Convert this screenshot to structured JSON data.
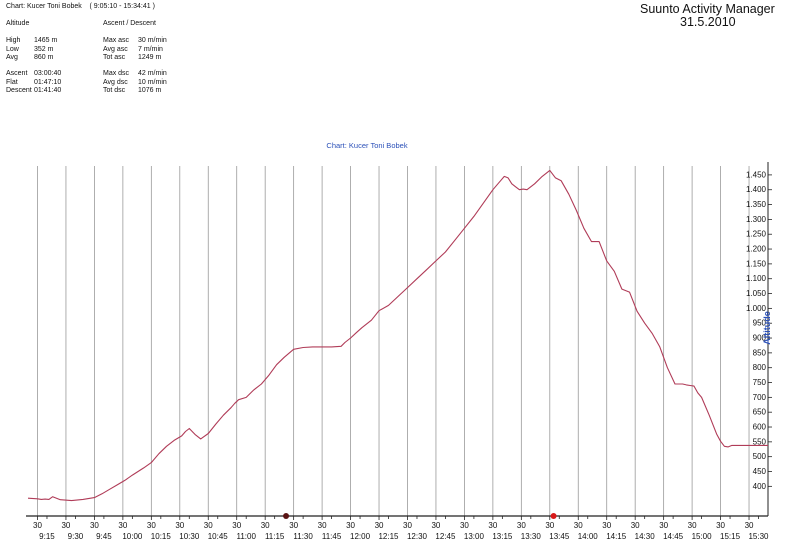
{
  "header": {
    "chart_line": "Chart: Kucer Toni Bobek",
    "time_range": "( 9:05:10 - 15:34:41 )",
    "app_title": "Suunto Activity Manager",
    "date": "31.5.2010",
    "altitude_section": {
      "title": "Altitude",
      "rows": [
        {
          "label": "High",
          "value": "1465 m"
        },
        {
          "label": "Low",
          "value": "352 m"
        },
        {
          "label": "Avg",
          "value": "860 m"
        }
      ]
    },
    "ascent_section": {
      "title": "Ascent / Descent",
      "rows": [
        {
          "label": "Max asc",
          "value": "30 m/min"
        },
        {
          "label": "Avg asc",
          "value": "7 m/min"
        },
        {
          "label": "Tot asc",
          "value": "1249 m"
        }
      ]
    },
    "time_rows": [
      {
        "label": "Ascent",
        "value": "03:00:40"
      },
      {
        "label": "Flat",
        "value": "01:47:10"
      },
      {
        "label": "Descent",
        "value": "01:41:40"
      }
    ],
    "descent_rows": [
      {
        "label": "Max dsc",
        "value": "42 m/min"
      },
      {
        "label": "Avg dsc",
        "value": "10 m/min"
      },
      {
        "label": "Tot dsc",
        "value": "1076 m"
      }
    ]
  },
  "chart_data": {
    "type": "line",
    "title": "Chart: Kucer Toni Bobek",
    "ylabel": "Altitude",
    "xlabel": "",
    "x_unit": "minutes after 9:00",
    "xlim": [
      5,
      395
    ],
    "ylim": [
      300,
      1480
    ],
    "grid": true,
    "y_ticks": [
      400,
      450,
      500,
      550,
      600,
      650,
      700,
      750,
      800,
      850,
      900,
      950,
      1000,
      1050,
      1100,
      1150,
      1200,
      1250,
      1300,
      1350,
      1400,
      1450
    ],
    "y_tick_labels": [
      "400",
      "450",
      "500",
      "550",
      "600",
      "650",
      "700",
      "750",
      "800",
      "850",
      "900",
      "950",
      "1.000",
      "1.050",
      "1.100",
      "1.150",
      "1.200",
      "1.250",
      "1.300",
      "1.350",
      "1.400",
      "1.450"
    ],
    "x_major_ticks": [
      {
        "minute": 15,
        "label": "9:15"
      },
      {
        "minute": 30,
        "label": "9:30"
      },
      {
        "minute": 45,
        "label": "9:45"
      },
      {
        "minute": 60,
        "label": "10:00"
      },
      {
        "minute": 75,
        "label": "10:15"
      },
      {
        "minute": 90,
        "label": "10:30"
      },
      {
        "minute": 105,
        "label": "10:45"
      },
      {
        "minute": 120,
        "label": "11:00"
      },
      {
        "minute": 135,
        "label": "11:15"
      },
      {
        "minute": 150,
        "label": "11:30"
      },
      {
        "minute": 165,
        "label": "11:45"
      },
      {
        "minute": 180,
        "label": "12:00"
      },
      {
        "minute": 195,
        "label": "12:15"
      },
      {
        "minute": 210,
        "label": "12:30"
      },
      {
        "minute": 225,
        "label": "12:45"
      },
      {
        "minute": 240,
        "label": "13:00"
      },
      {
        "minute": 255,
        "label": "13:15"
      },
      {
        "minute": 270,
        "label": "13:30"
      },
      {
        "minute": 285,
        "label": "13:45"
      },
      {
        "minute": 300,
        "label": "14:00"
      },
      {
        "minute": 315,
        "label": "14:15"
      },
      {
        "minute": 330,
        "label": "14:30"
      },
      {
        "minute": 345,
        "label": "14:45"
      },
      {
        "minute": 360,
        "label": "15:00"
      },
      {
        "minute": 375,
        "label": "15:15"
      },
      {
        "minute": 390,
        "label": "15:30"
      }
    ],
    "x_minor_ticks": [
      {
        "minute": 10,
        "label": "30"
      },
      {
        "minute": 25,
        "label": "30"
      },
      {
        "minute": 40,
        "label": "30"
      },
      {
        "minute": 55,
        "label": "30"
      },
      {
        "minute": 70,
        "label": "30"
      },
      {
        "minute": 85,
        "label": "30"
      },
      {
        "minute": 100,
        "label": "30"
      },
      {
        "minute": 115,
        "label": "30"
      },
      {
        "minute": 130,
        "label": "30"
      },
      {
        "minute": 145,
        "label": "30"
      },
      {
        "minute": 160,
        "label": "30"
      },
      {
        "minute": 175,
        "label": "30"
      },
      {
        "minute": 190,
        "label": "30"
      },
      {
        "minute": 205,
        "label": "30"
      },
      {
        "minute": 220,
        "label": "30"
      },
      {
        "minute": 235,
        "label": "30"
      },
      {
        "minute": 250,
        "label": "30"
      },
      {
        "minute": 265,
        "label": "30"
      },
      {
        "minute": 280,
        "label": "30"
      },
      {
        "minute": 295,
        "label": "30"
      },
      {
        "minute": 310,
        "label": "30"
      },
      {
        "minute": 325,
        "label": "30"
      },
      {
        "minute": 340,
        "label": "30"
      },
      {
        "minute": 355,
        "label": "30"
      },
      {
        "minute": 370,
        "label": "30"
      },
      {
        "minute": 385,
        "label": "30"
      }
    ],
    "series": [
      {
        "color": "#b03c58",
        "x": [
          5,
          10,
          12,
          14,
          16,
          18,
          22,
          28,
          34,
          40,
          44,
          48,
          52,
          56,
          60,
          66,
          70,
          74,
          78,
          82,
          86,
          88,
          90,
          93,
          96,
          100,
          104,
          108,
          112,
          114,
          116,
          120,
          124,
          128,
          132,
          136,
          140,
          145,
          150,
          155,
          160,
          165,
          170,
          172,
          175,
          178,
          181,
          186,
          190,
          195,
          200,
          205,
          210,
          215,
          220,
          225,
          230,
          235,
          240,
          245,
          250,
          254,
          256,
          258,
          260,
          262,
          264,
          266,
          268,
          272,
          276,
          280,
          283,
          286,
          290,
          294,
          298,
          302,
          306,
          310,
          314,
          318,
          322,
          326,
          330,
          334,
          338,
          342,
          346,
          350,
          352,
          354,
          356,
          358,
          360,
          364,
          368,
          370,
          372,
          374,
          376,
          380,
          385,
          390,
          395
        ],
        "y": [
          360,
          358,
          356,
          357,
          356,
          365,
          355,
          352,
          356,
          362,
          375,
          390,
          405,
          420,
          438,
          462,
          480,
          510,
          535,
          555,
          570,
          585,
          595,
          575,
          560,
          578,
          610,
          640,
          665,
          680,
          692,
          700,
          725,
          745,
          775,
          810,
          835,
          862,
          868,
          870,
          870,
          870,
          872,
          885,
          900,
          918,
          935,
          960,
          992,
          1010,
          1040,
          1070,
          1100,
          1130,
          1160,
          1190,
          1230,
          1270,
          1310,
          1355,
          1400,
          1430,
          1445,
          1440,
          1420,
          1410,
          1400,
          1402,
          1400,
          1420,
          1445,
          1465,
          1440,
          1430,
          1385,
          1330,
          1270,
          1225,
          1225,
          1160,
          1125,
          1065,
          1055,
          990,
          950,
          915,
          870,
          800,
          745,
          745,
          742,
          740,
          738,
          715,
          700,
          640,
          575,
          552,
          535,
          533,
          538,
          538,
          538,
          538,
          538
        ]
      }
    ],
    "markers": [
      {
        "x": 141,
        "y": 300,
        "color": "#5a1414"
      },
      {
        "x": 282,
        "y": 300,
        "color": "#d81818"
      }
    ]
  }
}
